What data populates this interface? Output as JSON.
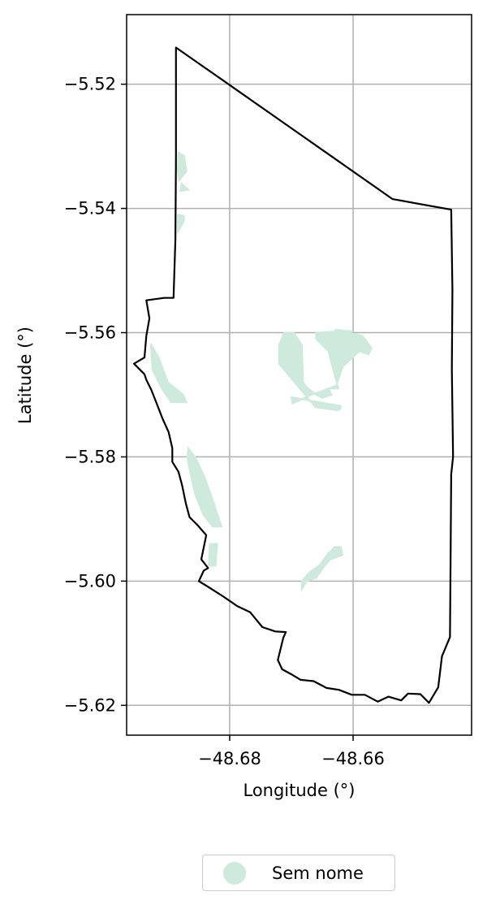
{
  "chart_data": {
    "type": "map",
    "xlabel": "Longitude (°)",
    "ylabel": "Latitude (°)",
    "xlim": [
      -48.6967,
      -48.6408
    ],
    "ylim": [
      -5.6248,
      -5.5088
    ],
    "xticks": [
      -48.68,
      -48.66
    ],
    "xtick_labels": [
      "−48.68",
      "−48.66"
    ],
    "yticks": [
      -5.52,
      -5.54,
      -5.56,
      -5.58,
      -5.6,
      -5.62
    ],
    "ytick_labels": [
      "−5.52",
      "−5.54",
      "−5.56",
      "−5.58",
      "−5.60",
      "−5.62"
    ],
    "grid": true,
    "legend": {
      "placement": "below",
      "entries": [
        {
          "label": "Sem nome",
          "color": "#cdeadd"
        }
      ]
    },
    "boundary": {
      "stroke": "#000000",
      "coords": [
        [
          -48.6887,
          -5.5141
        ],
        [
          -48.6799,
          -5.5202
        ],
        [
          -48.6536,
          -5.5385
        ],
        [
          -48.6441,
          -5.5402
        ],
        [
          -48.6439,
          -5.5531
        ],
        [
          -48.644,
          -5.566
        ],
        [
          -48.6438,
          -5.58
        ],
        [
          -48.6441,
          -5.5828
        ],
        [
          -48.6442,
          -5.5953
        ],
        [
          -48.6443,
          -5.609
        ],
        [
          -48.6456,
          -5.6121
        ],
        [
          -48.6462,
          -5.6171
        ],
        [
          -48.6477,
          -5.6196
        ],
        [
          -48.6491,
          -5.6182
        ],
        [
          -48.6511,
          -5.6181
        ],
        [
          -48.6522,
          -5.6192
        ],
        [
          -48.6543,
          -5.6186
        ],
        [
          -48.656,
          -5.6194
        ],
        [
          -48.6581,
          -5.6183
        ],
        [
          -48.6602,
          -5.6183
        ],
        [
          -48.6623,
          -5.6175
        ],
        [
          -48.6643,
          -5.6172
        ],
        [
          -48.6664,
          -5.6161
        ],
        [
          -48.6685,
          -5.6159
        ],
        [
          -48.67,
          -5.615
        ],
        [
          -48.6715,
          -5.6142
        ],
        [
          -48.6722,
          -5.6127
        ],
        [
          -48.6713,
          -5.6091
        ],
        [
          -48.6709,
          -5.6082
        ],
        [
          -48.6726,
          -5.6081
        ],
        [
          -48.6747,
          -5.6074
        ],
        [
          -48.6767,
          -5.605
        ],
        [
          -48.6788,
          -5.604
        ],
        [
          -48.681,
          -5.6025
        ],
        [
          -48.6832,
          -5.6011
        ],
        [
          -48.685,
          -5.6
        ],
        [
          -48.6842,
          -5.5983
        ],
        [
          -48.6835,
          -5.5979
        ],
        [
          -48.6846,
          -5.5965
        ],
        [
          -48.6838,
          -5.5926
        ],
        [
          -48.6852,
          -5.591
        ],
        [
          -48.6865,
          -5.5897
        ],
        [
          -48.6871,
          -5.5875
        ],
        [
          -48.6877,
          -5.5846
        ],
        [
          -48.6883,
          -5.5824
        ],
        [
          -48.6893,
          -5.5808
        ],
        [
          -48.6893,
          -5.5786
        ],
        [
          -48.6899,
          -5.576
        ],
        [
          -48.6909,
          -5.5738
        ],
        [
          -48.6918,
          -5.5715
        ],
        [
          -48.6927,
          -5.5692
        ],
        [
          -48.6935,
          -5.5676
        ],
        [
          -48.6938,
          -5.5667
        ],
        [
          -48.6955,
          -5.565
        ],
        [
          -48.6938,
          -5.564
        ],
        [
          -48.6935,
          -5.5605
        ],
        [
          -48.693,
          -5.5577
        ],
        [
          -48.6935,
          -5.5548
        ],
        [
          -48.6906,
          -5.5544
        ],
        [
          -48.6891,
          -5.5544
        ],
        [
          -48.6888,
          -5.545
        ],
        [
          -48.6887,
          -5.532
        ],
        [
          -48.6887,
          -5.5141
        ]
      ]
    },
    "areas": [
      {
        "label": "Sem nome",
        "fill": "#cdeadd",
        "shapes": [
          [
            [
              -48.6883,
              -5.531
            ],
            [
              -48.6874,
              -5.5315
            ],
            [
              -48.687,
              -5.534
            ],
            [
              -48.6882,
              -5.5355
            ],
            [
              -48.6884,
              -5.534
            ]
          ],
          [
            [
              -48.6878,
              -5.536
            ],
            [
              -48.6867,
              -5.537
            ],
            [
              -48.688,
              -5.5372
            ]
          ],
          [
            [
              -48.6884,
              -5.541
            ],
            [
              -48.6874,
              -5.5412
            ],
            [
              -48.6874,
              -5.542
            ],
            [
              -48.6884,
              -5.5438
            ]
          ],
          [
            [
              -48.6928,
              -5.5618
            ],
            [
              -48.6915,
              -5.564
            ],
            [
              -48.69,
              -5.568
            ],
            [
              -48.6875,
              -5.57
            ],
            [
              -48.687,
              -5.5712
            ],
            [
              -48.6895,
              -5.5712
            ],
            [
              -48.691,
              -5.569
            ],
            [
              -48.6925,
              -5.566
            ]
          ],
          [
            [
              -48.6867,
              -5.5786
            ],
            [
              -48.6855,
              -5.5802
            ],
            [
              -48.6841,
              -5.5832
            ],
            [
              -48.6827,
              -5.587
            ],
            [
              -48.6818,
              -5.5898
            ],
            [
              -48.6813,
              -5.5912
            ],
            [
              -48.6828,
              -5.5912
            ],
            [
              -48.6843,
              -5.5893
            ],
            [
              -48.6856,
              -5.586
            ],
            [
              -48.6863,
              -5.583
            ],
            [
              -48.6869,
              -5.58
            ]
          ],
          [
            [
              -48.6832,
              -5.594
            ],
            [
              -48.682,
              -5.594
            ],
            [
              -48.6823,
              -5.5975
            ],
            [
              -48.6834,
              -5.5975
            ]
          ],
          [
            [
              -48.6712,
              -5.56
            ],
            [
              -48.6696,
              -5.56
            ],
            [
              -48.6683,
              -5.562
            ],
            [
              -48.6681,
              -5.568
            ],
            [
              -48.6676,
              -5.5687
            ],
            [
              -48.666,
              -5.57
            ],
            [
              -48.665,
              -5.5705
            ],
            [
              -48.6635,
              -5.57
            ],
            [
              -48.664,
              -5.569
            ],
            [
              -48.6624,
              -5.569
            ],
            [
              -48.664,
              -5.563
            ],
            [
              -48.666,
              -5.561
            ],
            [
              -48.666,
              -5.56
            ],
            [
              -48.6625,
              -5.5598
            ],
            [
              -48.66,
              -5.5598
            ],
            [
              -48.663,
              -5.5595
            ],
            [
              -48.6585,
              -5.5605
            ],
            [
              -48.657,
              -5.5625
            ],
            [
              -48.6575,
              -5.5635
            ],
            [
              -48.659,
              -5.563
            ],
            [
              -48.6617,
              -5.5655
            ],
            [
              -48.6627,
              -5.5685
            ],
            [
              -48.6672,
              -5.5702
            ],
            [
              -48.6698,
              -5.5714
            ],
            [
              -48.67,
              -5.5704
            ],
            [
              -48.662,
              -5.5718
            ],
            [
              -48.6621,
              -5.5723
            ],
            [
              -48.6625,
              -5.5725
            ],
            [
              -48.6661,
              -5.572
            ],
            [
              -48.672,
              -5.565
            ],
            [
              -48.672,
              -5.562
            ]
          ],
          [
            [
              -48.663,
              -5.5945
            ],
            [
              -48.664,
              -5.5955
            ],
            [
              -48.6655,
              -5.5975
            ],
            [
              -48.667,
              -5.5985
            ],
            [
              -48.6683,
              -5.6
            ],
            [
              -48.6683,
              -5.6013
            ],
            [
              -48.6675,
              -5.6
            ],
            [
              -48.666,
              -5.5995
            ],
            [
              -48.6648,
              -5.5978
            ],
            [
              -48.6637,
              -5.5965
            ],
            [
              -48.6617,
              -5.5958
            ],
            [
              -48.662,
              -5.5945
            ]
          ]
        ]
      }
    ]
  }
}
